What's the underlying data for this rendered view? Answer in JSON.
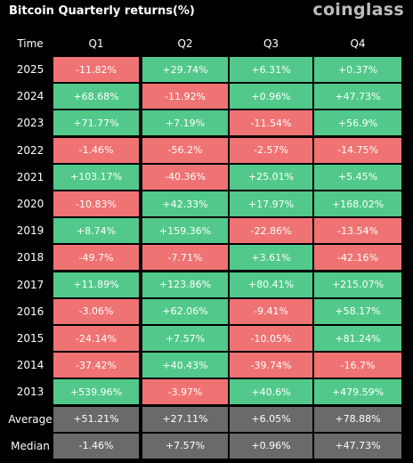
{
  "header": {
    "title": "Bitcoin Quarterly returns(%)",
    "brand": "coinglass"
  },
  "colors": {
    "positive": "#52c98a",
    "negative": "#f07373",
    "summary": "#6a6a6a",
    "background": "#000000"
  },
  "chart_data": {
    "type": "table",
    "title": "Bitcoin Quarterly returns(%)",
    "columns": [
      "Time",
      "Q1",
      "Q2",
      "Q3",
      "Q4"
    ],
    "rows": [
      {
        "label": "2025",
        "values": [
          "-11.82%",
          "+29.74%",
          "+6.31%",
          "+0.37%"
        ]
      },
      {
        "label": "2024",
        "values": [
          "+68.68%",
          "-11.92%",
          "+0.96%",
          "+47.73%"
        ]
      },
      {
        "label": "2023",
        "values": [
          "+71.77%",
          "+7.19%",
          "-11.54%",
          "+56.9%"
        ]
      },
      {
        "label": "2022",
        "values": [
          "-1.46%",
          "-56.2%",
          "-2.57%",
          "-14.75%"
        ]
      },
      {
        "label": "2021",
        "values": [
          "+103.17%",
          "-40.36%",
          "+25.01%",
          "+5.45%"
        ]
      },
      {
        "label": "2020",
        "values": [
          "-10.83%",
          "+42.33%",
          "+17.97%",
          "+168.02%"
        ]
      },
      {
        "label": "2019",
        "values": [
          "+8.74%",
          "+159.36%",
          "-22.86%",
          "-13.54%"
        ]
      },
      {
        "label": "2018",
        "values": [
          "-49.7%",
          "-7.71%",
          "+3.61%",
          "-42.16%"
        ]
      },
      {
        "label": "2017",
        "values": [
          "+11.89%",
          "+123.86%",
          "+80.41%",
          "+215.07%"
        ]
      },
      {
        "label": "2016",
        "values": [
          "-3.06%",
          "+62.06%",
          "-9.41%",
          "+58.17%"
        ]
      },
      {
        "label": "2015",
        "values": [
          "-24.14%",
          "+7.57%",
          "-10.05%",
          "+81.24%"
        ]
      },
      {
        "label": "2014",
        "values": [
          "-37.42%",
          "+40.43%",
          "-39.74%",
          "-16.7%"
        ]
      },
      {
        "label": "2013",
        "values": [
          "+539.96%",
          "-3.97%",
          "+40.6%",
          "+479.59%"
        ]
      }
    ],
    "summary_rows": [
      {
        "label": "Average",
        "values": [
          "+51.21%",
          "+27.11%",
          "+6.05%",
          "+78.88%"
        ]
      },
      {
        "label": "Median",
        "values": [
          "-1.46%",
          "+7.57%",
          "+0.96%",
          "+47.73%"
        ]
      }
    ]
  }
}
